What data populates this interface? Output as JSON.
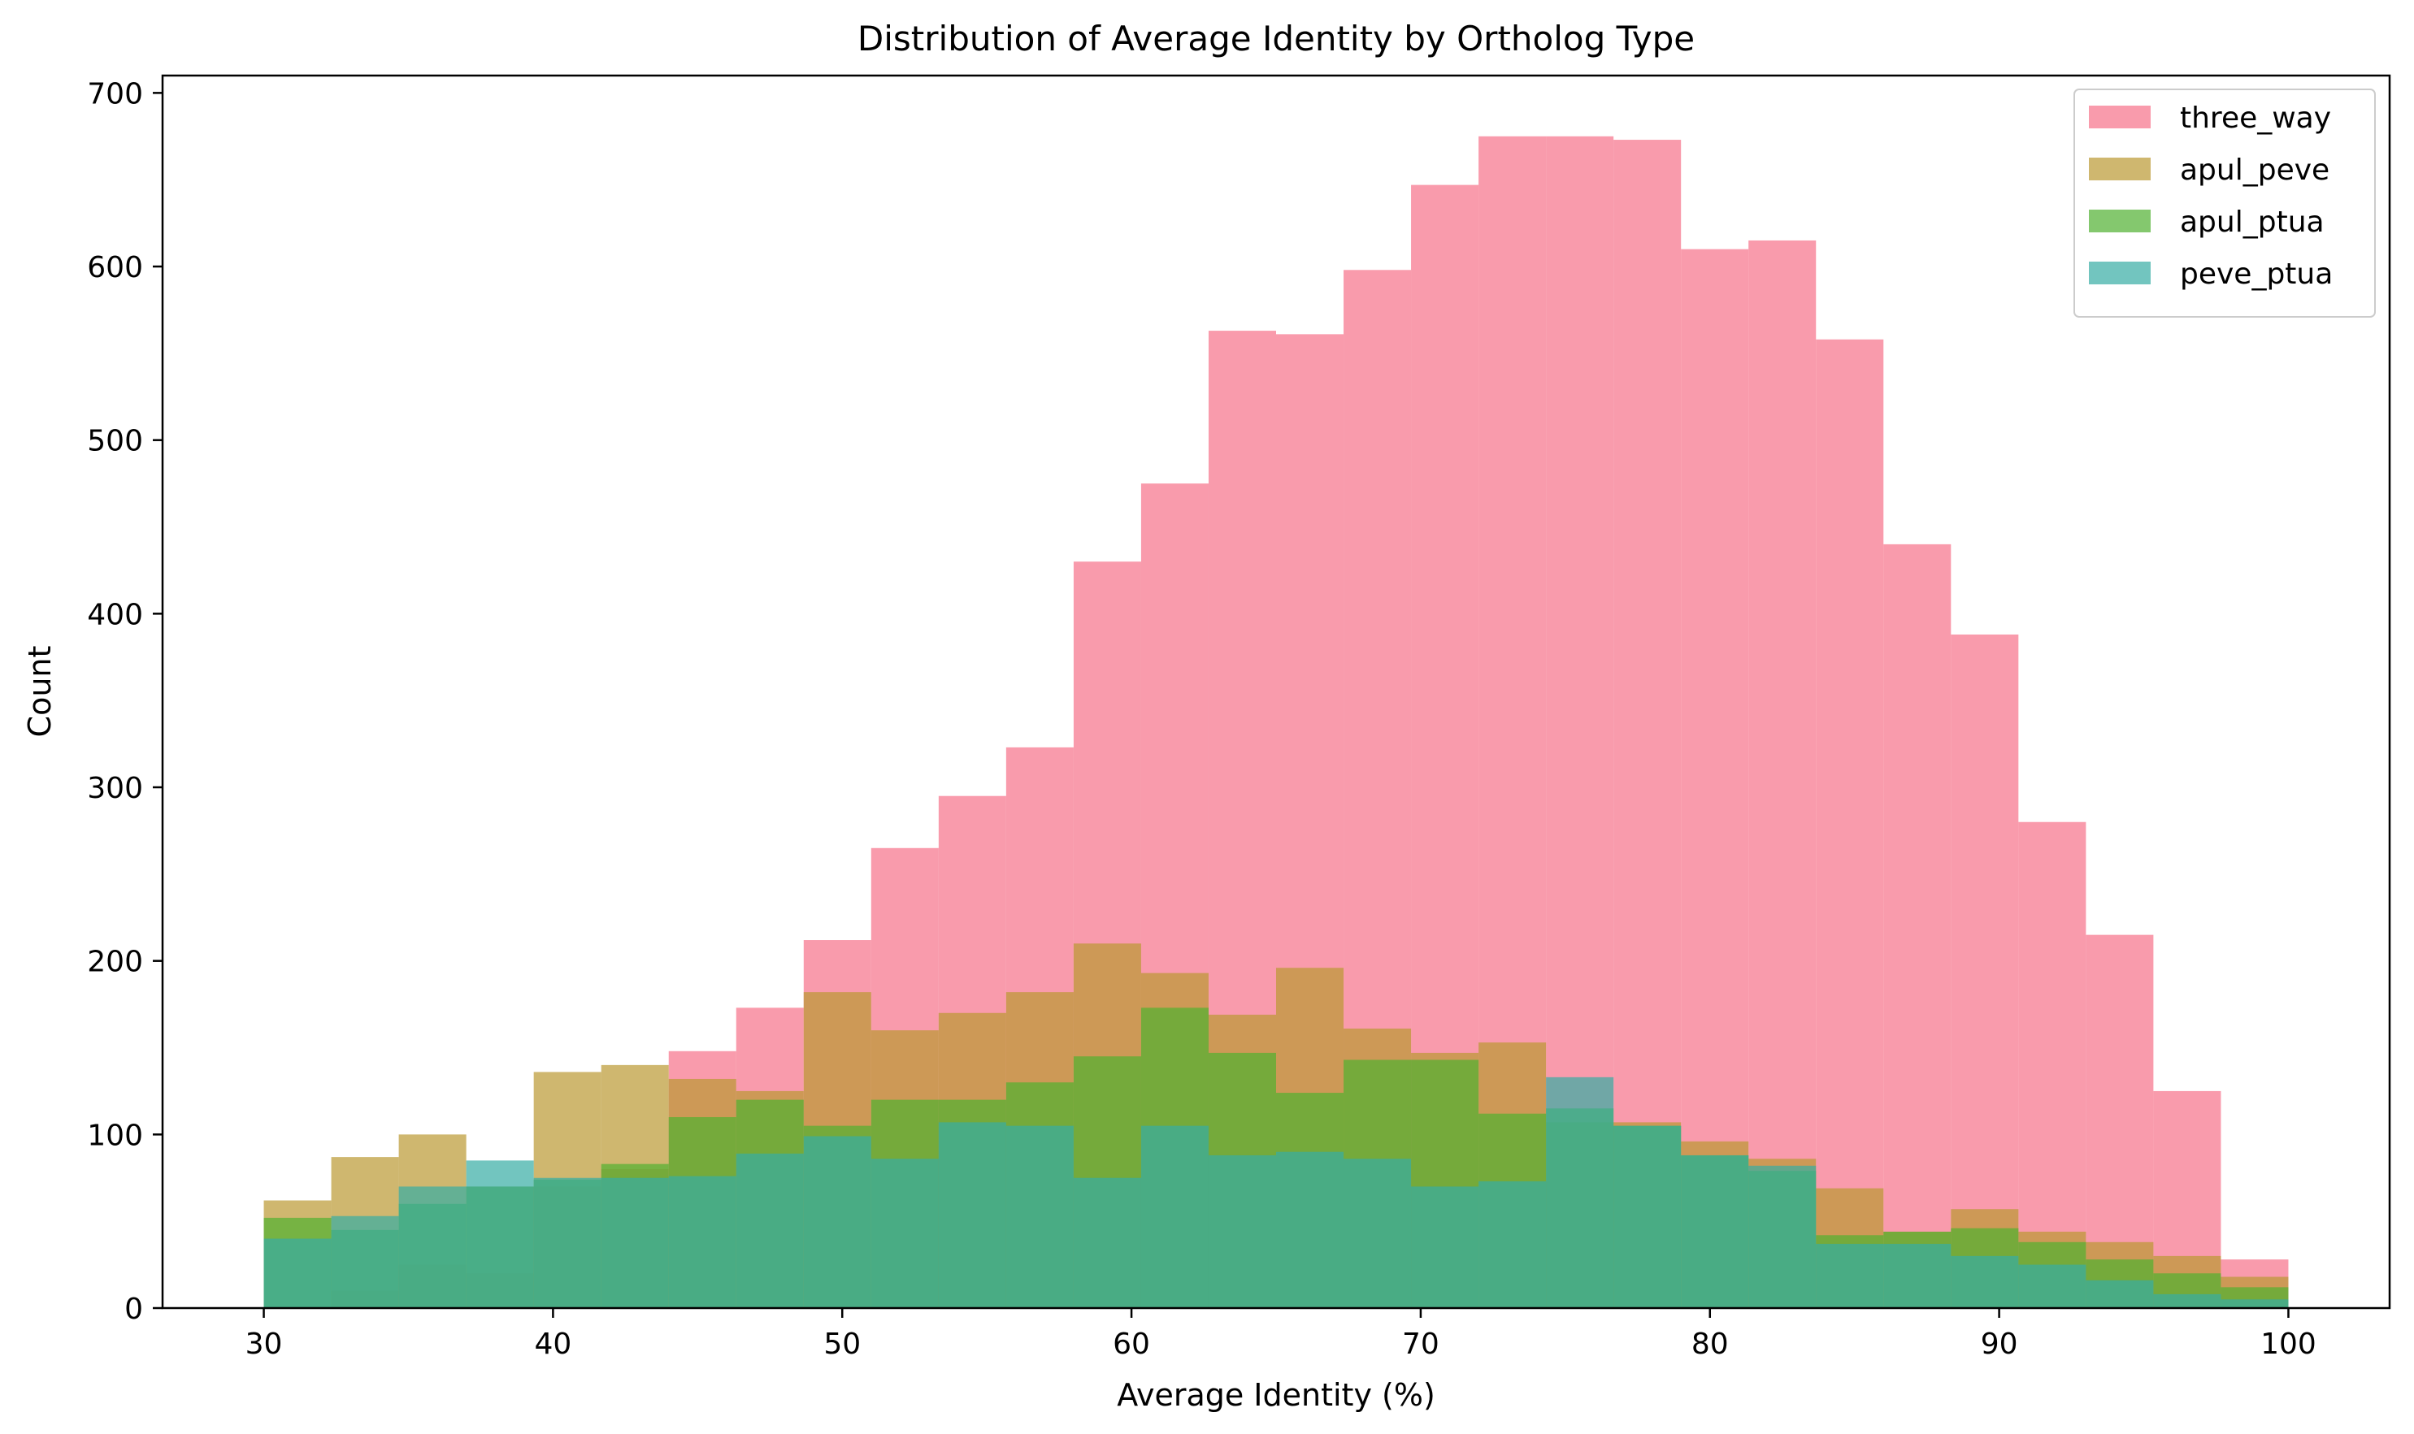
{
  "chart_data": {
    "type": "histogram",
    "title": "Distribution of Average Identity by Ortholog Type",
    "xlabel": "Average Identity (%)",
    "ylabel": "Count",
    "xlim": [
      26.5,
      103.5
    ],
    "ylim": [
      0,
      710
    ],
    "xticks": [
      30,
      40,
      50,
      60,
      70,
      80,
      90,
      100
    ],
    "yticks": [
      0,
      100,
      200,
      300,
      400,
      500,
      600,
      700
    ],
    "bins": {
      "start": 30,
      "end": 100,
      "count": 30
    },
    "grid": false,
    "legend_position": "top-right",
    "series": [
      {
        "name": "three_way",
        "color": "#f77189",
        "opacity": 0.7,
        "values": [
          0,
          10,
          25,
          20,
          70,
          80,
          148,
          173,
          212,
          265,
          295,
          323,
          430,
          475,
          563,
          561,
          598,
          647,
          675,
          675,
          673,
          610,
          615,
          558,
          440,
          388,
          280,
          215,
          125,
          28
        ]
      },
      {
        "name": "apul_peve",
        "color": "#bb9832",
        "opacity": 0.7,
        "values": [
          62,
          87,
          100,
          70,
          136,
          140,
          132,
          125,
          182,
          160,
          170,
          182,
          210,
          193,
          169,
          196,
          161,
          147,
          153,
          107,
          107,
          96,
          86,
          69,
          44,
          57,
          44,
          38,
          30,
          18
        ]
      },
      {
        "name": "apul_ptua",
        "color": "#50b131",
        "opacity": 0.7,
        "values": [
          52,
          45,
          60,
          70,
          74,
          83,
          110,
          120,
          105,
          120,
          120,
          130,
          145,
          173,
          147,
          124,
          143,
          143,
          112,
          115,
          105,
          88,
          79,
          42,
          44,
          46,
          38,
          28,
          20,
          12
        ]
      },
      {
        "name": "peve_ptua",
        "color": "#36ada4",
        "opacity": 0.7,
        "values": [
          40,
          53,
          70,
          85,
          75,
          75,
          76,
          89,
          99,
          86,
          107,
          105,
          75,
          105,
          88,
          90,
          86,
          70,
          73,
          133,
          105,
          88,
          82,
          37,
          37,
          30,
          25,
          16,
          8,
          5
        ]
      }
    ]
  }
}
